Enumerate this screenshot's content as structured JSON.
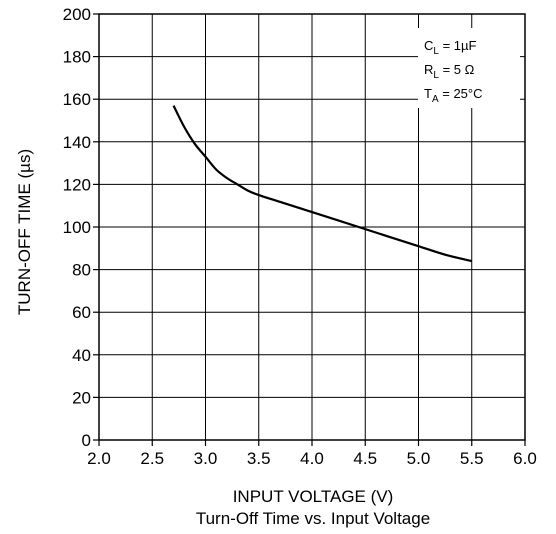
{
  "chart_data": {
    "type": "line",
    "title": "Turn-Off Time vs. Input Voltage",
    "xlabel": "INPUT VOLTAGE (V)",
    "ylabel": "TURN-OFF TIME (µs)",
    "xlim": [
      2.0,
      6.0
    ],
    "ylim": [
      0,
      200
    ],
    "xticks": [
      "2.0",
      "2.5",
      "3.0",
      "3.5",
      "4.0",
      "4.5",
      "5.0",
      "5.5",
      "6.0"
    ],
    "yticks": [
      "0",
      "20",
      "40",
      "60",
      "80",
      "100",
      "120",
      "140",
      "160",
      "180",
      "200"
    ],
    "grid": true,
    "annotations": [
      {
        "main": "C",
        "sub": "L",
        "rest": " = 1µF"
      },
      {
        "main": "R",
        "sub": "L",
        "rest": " = 5 Ω"
      },
      {
        "main": "T",
        "sub": "A",
        "rest": " = 25°C"
      }
    ],
    "series": [
      {
        "x": [
          2.7,
          2.8,
          2.9,
          3.0,
          3.1,
          3.2,
          3.3,
          3.4,
          3.5,
          3.75,
          4.0,
          4.25,
          4.5,
          4.75,
          5.0,
          5.25,
          5.5
        ],
        "y": [
          157,
          147,
          139,
          133,
          127,
          123,
          120,
          117,
          115,
          111,
          107,
          103,
          99,
          95,
          91,
          87,
          84
        ]
      }
    ]
  }
}
